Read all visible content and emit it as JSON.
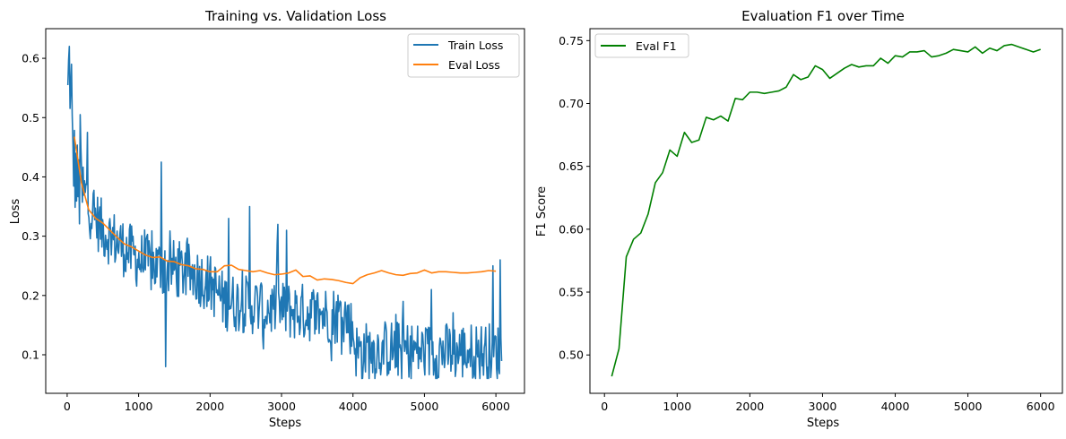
{
  "chart_data": [
    {
      "type": "line",
      "title": "Training vs. Validation Loss",
      "xlabel": "Steps",
      "ylabel": "Loss",
      "xlim": [
        -300,
        6400
      ],
      "ylim": [
        0.035,
        0.65
      ],
      "xticks": [
        0,
        1000,
        2000,
        3000,
        4000,
        5000,
        6000
      ],
      "yticks": [
        0.1,
        0.2,
        0.3,
        0.4,
        0.5,
        0.6
      ],
      "legend_position": "top-right",
      "grid": false,
      "series": [
        {
          "name": "Train Loss",
          "color": "#1f77b4",
          "anchors": [
            [
              10,
              0.53
            ],
            [
              30,
              0.62
            ],
            [
              60,
              0.47
            ],
            [
              100,
              0.42
            ],
            [
              150,
              0.38
            ],
            [
              200,
              0.37
            ],
            [
              300,
              0.35
            ],
            [
              400,
              0.33
            ],
            [
              500,
              0.31
            ],
            [
              700,
              0.29
            ],
            [
              1000,
              0.26
            ],
            [
              1200,
              0.25
            ],
            [
              1500,
              0.245
            ],
            [
              1800,
              0.235
            ],
            [
              2000,
              0.22
            ],
            [
              2200,
              0.19
            ],
            [
              2500,
              0.185
            ],
            [
              3000,
              0.175
            ],
            [
              3500,
              0.17
            ],
            [
              3900,
              0.165
            ],
            [
              4000,
              0.14
            ],
            [
              4050,
              0.105
            ],
            [
              4500,
              0.11
            ],
            [
              5000,
              0.105
            ],
            [
              5500,
              0.105
            ],
            [
              6000,
              0.105
            ],
            [
              6080,
              0.1
            ]
          ],
          "noise_amplitude": 0.05,
          "spikes": [
            [
              30,
              0.62
            ],
            [
              60,
              0.59
            ],
            [
              180,
              0.505
            ],
            [
              280,
              0.475
            ],
            [
              1320,
              0.425
            ],
            [
              2550,
              0.35
            ],
            [
              3070,
              0.31
            ],
            [
              2950,
              0.32
            ],
            [
              2260,
              0.33
            ],
            [
              5960,
              0.25
            ],
            [
              6060,
              0.26
            ],
            [
              4700,
              0.19
            ],
            [
              5100,
              0.21
            ],
            [
              1380,
              0.08
            ],
            [
              4120,
              0.06
            ],
            [
              3700,
              0.09
            ],
            [
              2750,
              0.11
            ]
          ],
          "sample_count": 600
        },
        {
          "name": "Eval Loss",
          "color": "#ff7f0e",
          "x": [
            100,
            200,
            300,
            400,
            500,
            600,
            700,
            800,
            900,
            1000,
            1100,
            1200,
            1300,
            1400,
            1500,
            1600,
            1700,
            1800,
            1900,
            2000,
            2100,
            2200,
            2300,
            2400,
            2500,
            2600,
            2700,
            2800,
            2900,
            3000,
            3100,
            3200,
            3300,
            3400,
            3500,
            3600,
            3700,
            3800,
            3900,
            4000,
            4100,
            4200,
            4300,
            4400,
            4500,
            4600,
            4700,
            4800,
            4900,
            5000,
            5100,
            5200,
            5300,
            5400,
            5500,
            5600,
            5700,
            5800,
            5900,
            6000
          ],
          "values": [
            0.468,
            0.39,
            0.345,
            0.33,
            0.322,
            0.31,
            0.298,
            0.287,
            0.282,
            0.275,
            0.268,
            0.264,
            0.265,
            0.258,
            0.257,
            0.252,
            0.25,
            0.245,
            0.244,
            0.24,
            0.24,
            0.25,
            0.251,
            0.244,
            0.242,
            0.24,
            0.242,
            0.238,
            0.235,
            0.236,
            0.238,
            0.243,
            0.232,
            0.233,
            0.226,
            0.228,
            0.227,
            0.225,
            0.222,
            0.22,
            0.23,
            0.235,
            0.238,
            0.242,
            0.238,
            0.235,
            0.234,
            0.237,
            0.238,
            0.243,
            0.238,
            0.24,
            0.24,
            0.239,
            0.238,
            0.238,
            0.239,
            0.24,
            0.242,
            0.241
          ]
        }
      ]
    },
    {
      "type": "line",
      "title": "Evaluation F1 over Time",
      "xlabel": "Steps",
      "ylabel": "F1 Score",
      "xlim": [
        -200,
        6300
      ],
      "ylim": [
        0.4695,
        0.7595
      ],
      "xticks": [
        0,
        1000,
        2000,
        3000,
        4000,
        5000,
        6000
      ],
      "yticks": [
        0.5,
        0.55,
        0.6,
        0.65,
        0.7,
        0.75
      ],
      "legend_position": "top-left",
      "grid": false,
      "series": [
        {
          "name": "Eval F1",
          "color": "#008000",
          "x": [
            100,
            200,
            300,
            400,
            500,
            600,
            700,
            800,
            900,
            1000,
            1100,
            1200,
            1300,
            1400,
            1500,
            1600,
            1700,
            1800,
            1900,
            2000,
            2100,
            2200,
            2300,
            2400,
            2500,
            2600,
            2700,
            2800,
            2900,
            3000,
            3100,
            3200,
            3300,
            3400,
            3500,
            3600,
            3700,
            3800,
            3900,
            4000,
            4100,
            4200,
            4300,
            4400,
            4500,
            4600,
            4700,
            4800,
            4900,
            5000,
            5100,
            5200,
            5300,
            5400,
            5500,
            5600,
            5700,
            5800,
            5900,
            6000
          ],
          "values": [
            0.483,
            0.505,
            0.578,
            0.592,
            0.597,
            0.612,
            0.637,
            0.645,
            0.663,
            0.658,
            0.677,
            0.669,
            0.671,
            0.689,
            0.687,
            0.69,
            0.686,
            0.704,
            0.703,
            0.709,
            0.709,
            0.708,
            0.709,
            0.71,
            0.713,
            0.723,
            0.719,
            0.721,
            0.73,
            0.727,
            0.72,
            0.724,
            0.728,
            0.731,
            0.729,
            0.73,
            0.73,
            0.736,
            0.732,
            0.738,
            0.737,
            0.741,
            0.741,
            0.742,
            0.737,
            0.738,
            0.74,
            0.743,
            0.742,
            0.741,
            0.745,
            0.74,
            0.744,
            0.742,
            0.746,
            0.747,
            0.745,
            0.743,
            0.741,
            0.743
          ]
        }
      ]
    }
  ]
}
